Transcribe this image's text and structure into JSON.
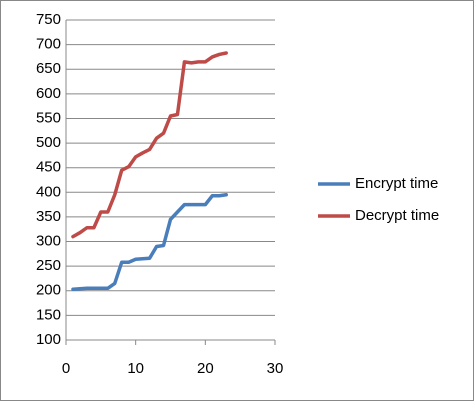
{
  "chart_data": {
    "type": "line",
    "x": [
      1,
      2,
      3,
      4,
      5,
      6,
      7,
      8,
      9,
      10,
      11,
      12,
      13,
      14,
      15,
      16,
      17,
      18,
      19,
      20,
      21,
      22,
      23
    ],
    "series": [
      {
        "name": "Encrypt time",
        "color": "#4a7ebb",
        "values": [
          203,
          204,
          205,
          205,
          205,
          205,
          215,
          258,
          258,
          264,
          265,
          266,
          290,
          292,
          345,
          360,
          375,
          375,
          375,
          375,
          393,
          393,
          395
        ]
      },
      {
        "name": "Decrypt time",
        "color": "#be4b48",
        "values": [
          310,
          318,
          328,
          328,
          360,
          360,
          395,
          445,
          452,
          472,
          480,
          487,
          510,
          520,
          555,
          558,
          665,
          663,
          665,
          665,
          675,
          680,
          683
        ]
      }
    ],
    "xlim": [
      0,
      30
    ],
    "xticks": [
      0,
      10,
      20,
      30
    ],
    "ylim": [
      100,
      750
    ],
    "yticks": [
      100,
      150,
      200,
      250,
      300,
      350,
      400,
      450,
      500,
      550,
      600,
      650,
      700,
      750
    ],
    "grid": true
  }
}
